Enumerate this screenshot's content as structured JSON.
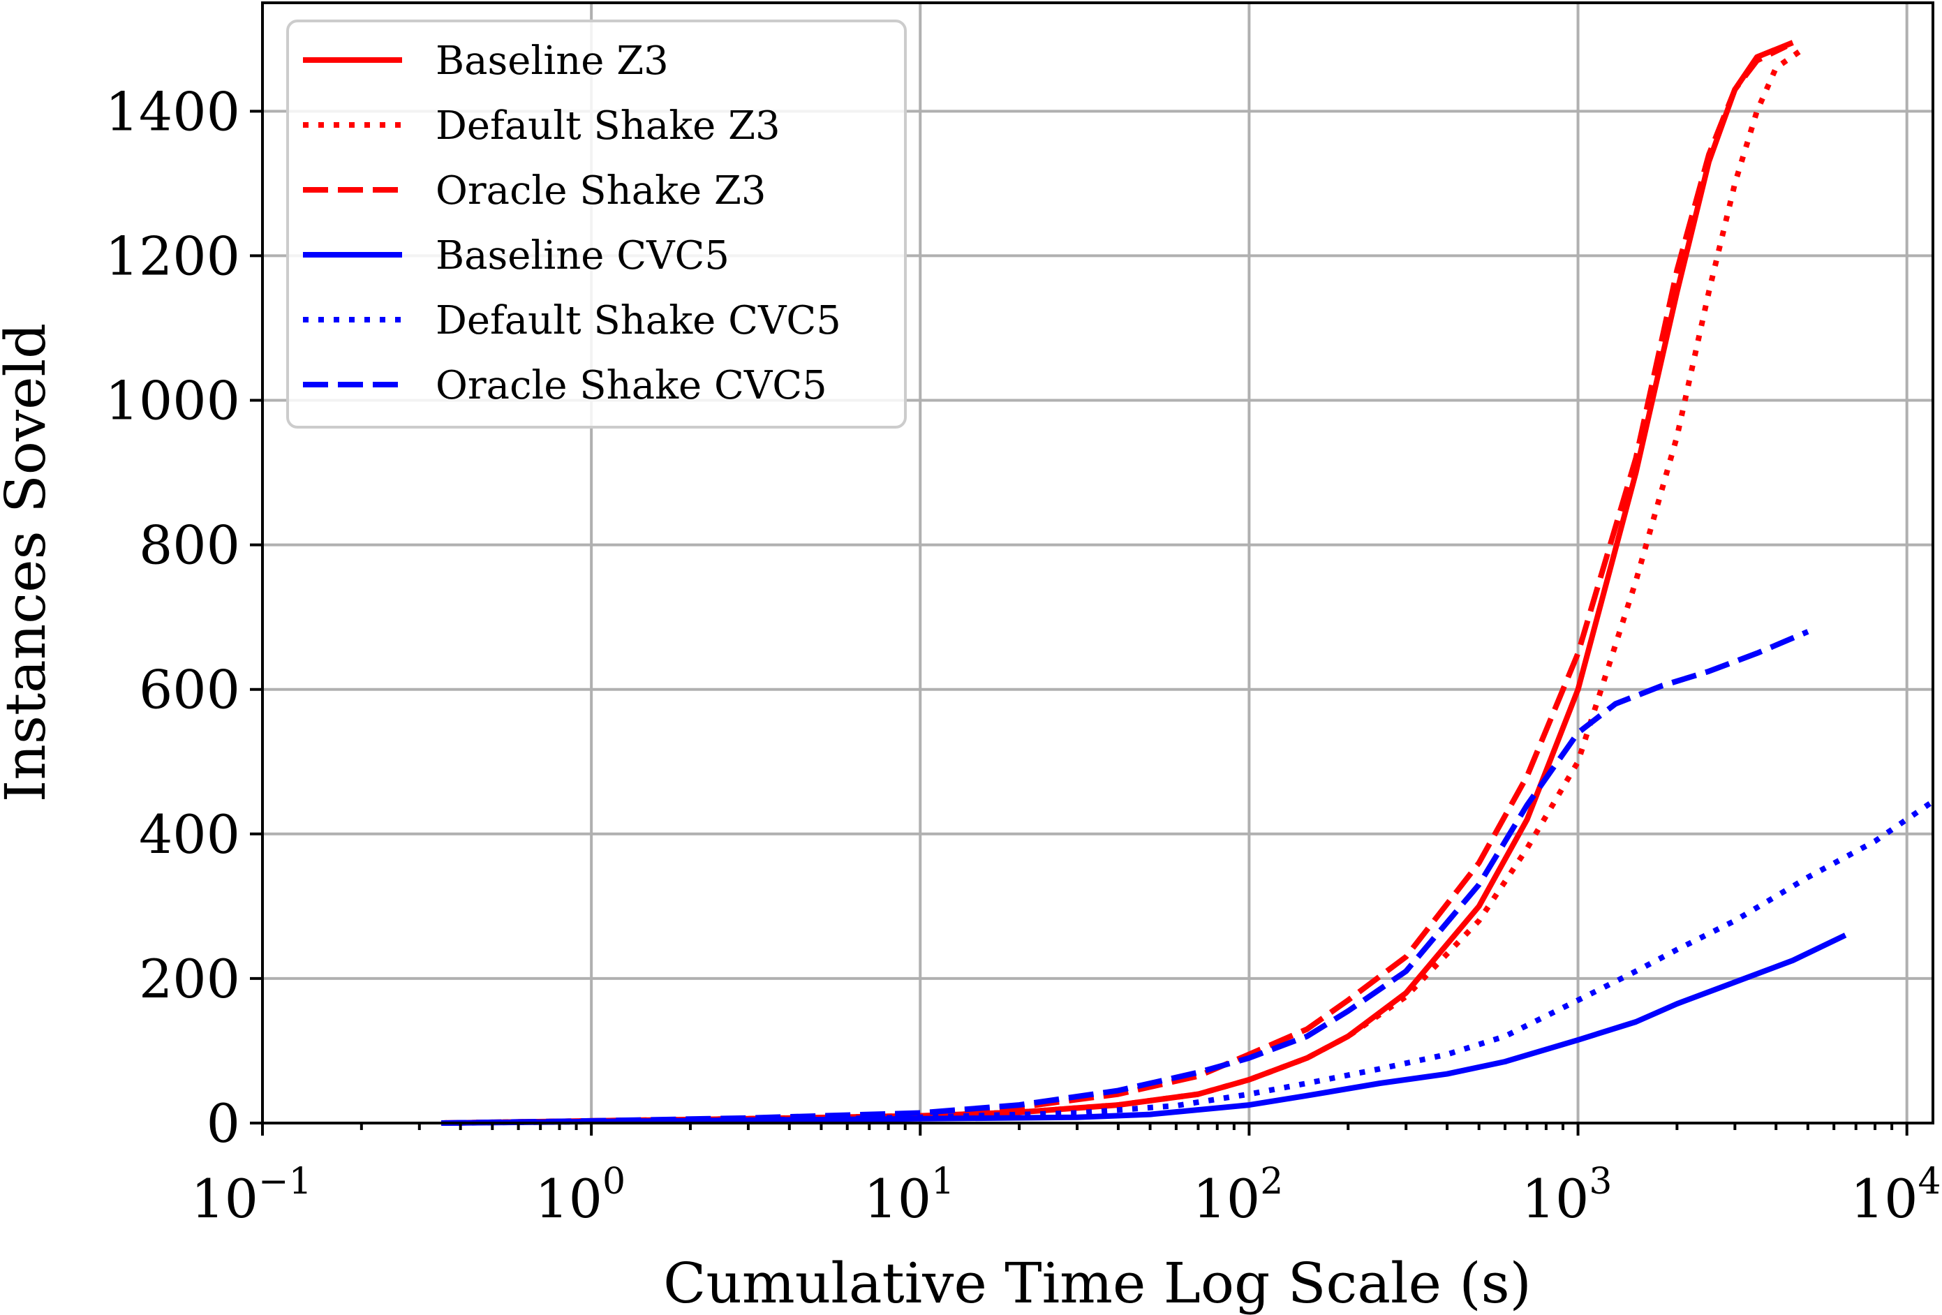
{
  "chart_data": {
    "type": "line",
    "xlabel": "Cumulative Time Log Scale (s)",
    "ylabel": "Instances Soveld",
    "xscale": "log",
    "xlim": [
      0.1,
      12000
    ],
    "ylim": [
      0,
      1550
    ],
    "xticks": [
      {
        "value": 0.1,
        "base": "10",
        "exp": "−1"
      },
      {
        "value": 1,
        "base": "10",
        "exp": "0"
      },
      {
        "value": 10,
        "base": "10",
        "exp": "1"
      },
      {
        "value": 100,
        "base": "10",
        "exp": "2"
      },
      {
        "value": 1000,
        "base": "10",
        "exp": "3"
      },
      {
        "value": 10000,
        "base": "10",
        "exp": "4"
      }
    ],
    "yticks": [
      "0",
      "200",
      "400",
      "600",
      "800",
      "1000",
      "1200",
      "1400"
    ],
    "grid": true,
    "legend_position": "top-left",
    "series": [
      {
        "name": "Baseline Z3",
        "color": "#ff0000",
        "style": "solid",
        "points": [
          [
            0.35,
            0
          ],
          [
            1,
            3
          ],
          [
            3,
            6
          ],
          [
            10,
            10
          ],
          [
            20,
            15
          ],
          [
            40,
            25
          ],
          [
            70,
            40
          ],
          [
            100,
            60
          ],
          [
            150,
            90
          ],
          [
            200,
            120
          ],
          [
            300,
            180
          ],
          [
            500,
            300
          ],
          [
            700,
            420
          ],
          [
            1000,
            600
          ],
          [
            1500,
            900
          ],
          [
            2000,
            1150
          ],
          [
            2500,
            1330
          ],
          [
            3000,
            1430
          ],
          [
            3500,
            1475
          ],
          [
            4500,
            1495
          ]
        ]
      },
      {
        "name": "Default Shake Z3",
        "color": "#ff0000",
        "style": "dotted",
        "points": [
          [
            0.35,
            0
          ],
          [
            1,
            3
          ],
          [
            3,
            6
          ],
          [
            10,
            10
          ],
          [
            20,
            15
          ],
          [
            40,
            25
          ],
          [
            70,
            40
          ],
          [
            100,
            60
          ],
          [
            150,
            90
          ],
          [
            200,
            120
          ],
          [
            300,
            175
          ],
          [
            500,
            280
          ],
          [
            700,
            380
          ],
          [
            1000,
            500
          ],
          [
            1500,
            750
          ],
          [
            2000,
            950
          ],
          [
            2500,
            1150
          ],
          [
            3000,
            1300
          ],
          [
            3500,
            1400
          ],
          [
            4000,
            1460
          ],
          [
            4800,
            1485
          ]
        ]
      },
      {
        "name": "Oracle Shake Z3",
        "color": "#ff0000",
        "style": "dashed",
        "points": [
          [
            0.35,
            0
          ],
          [
            1,
            3
          ],
          [
            3,
            6
          ],
          [
            10,
            12
          ],
          [
            20,
            22
          ],
          [
            40,
            40
          ],
          [
            70,
            65
          ],
          [
            100,
            95
          ],
          [
            150,
            130
          ],
          [
            200,
            170
          ],
          [
            300,
            230
          ],
          [
            500,
            360
          ],
          [
            700,
            480
          ],
          [
            1000,
            650
          ],
          [
            1500,
            920
          ],
          [
            2000,
            1180
          ],
          [
            2500,
            1340
          ],
          [
            3000,
            1430
          ],
          [
            3500,
            1470
          ],
          [
            4300,
            1490
          ]
        ]
      },
      {
        "name": "Baseline CVC5",
        "color": "#0000ff",
        "style": "solid",
        "points": [
          [
            0.35,
            0
          ],
          [
            1,
            2
          ],
          [
            3,
            4
          ],
          [
            10,
            6
          ],
          [
            30,
            8
          ],
          [
            50,
            12
          ],
          [
            100,
            25
          ],
          [
            150,
            38
          ],
          [
            250,
            55
          ],
          [
            400,
            68
          ],
          [
            600,
            85
          ],
          [
            1000,
            115
          ],
          [
            1500,
            140
          ],
          [
            2000,
            165
          ],
          [
            3000,
            195
          ],
          [
            4500,
            225
          ],
          [
            6500,
            260
          ]
        ]
      },
      {
        "name": "Default Shake CVC5",
        "color": "#0000ff",
        "style": "dotted",
        "points": [
          [
            0.35,
            0
          ],
          [
            1,
            2
          ],
          [
            3,
            4
          ],
          [
            10,
            8
          ],
          [
            30,
            14
          ],
          [
            60,
            24
          ],
          [
            100,
            40
          ],
          [
            150,
            55
          ],
          [
            250,
            75
          ],
          [
            400,
            95
          ],
          [
            600,
            120
          ],
          [
            1000,
            170
          ],
          [
            1500,
            210
          ],
          [
            2000,
            240
          ],
          [
            3000,
            280
          ],
          [
            5000,
            340
          ],
          [
            8000,
            390
          ],
          [
            12000,
            445
          ]
        ]
      },
      {
        "name": "Oracle Shake CVC5",
        "color": "#0000ff",
        "style": "dashed",
        "points": [
          [
            0.35,
            0
          ],
          [
            1,
            3
          ],
          [
            3,
            7
          ],
          [
            10,
            14
          ],
          [
            20,
            25
          ],
          [
            40,
            45
          ],
          [
            70,
            70
          ],
          [
            100,
            90
          ],
          [
            150,
            120
          ],
          [
            200,
            155
          ],
          [
            300,
            210
          ],
          [
            500,
            330
          ],
          [
            700,
            440
          ],
          [
            1000,
            540
          ],
          [
            1300,
            580
          ],
          [
            1800,
            605
          ],
          [
            2500,
            625
          ],
          [
            3500,
            650
          ],
          [
            5000,
            680
          ]
        ]
      }
    ]
  }
}
